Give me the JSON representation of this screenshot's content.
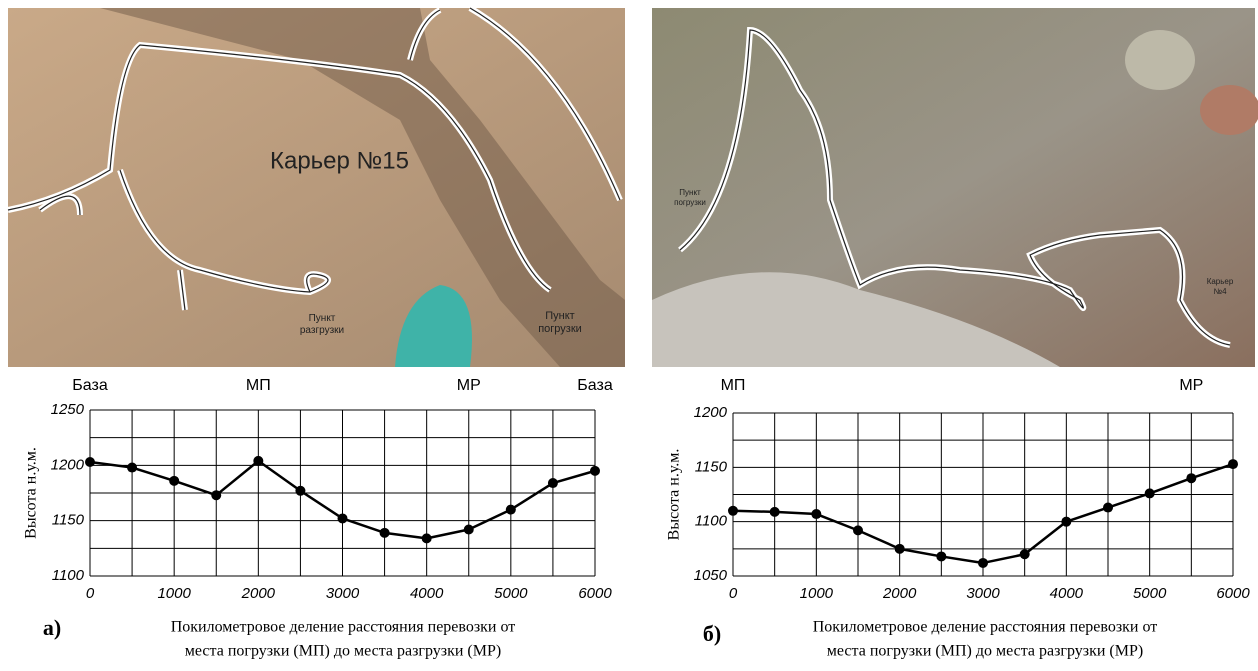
{
  "chart_data": [
    {
      "type": "line",
      "panel_label": "а)",
      "map_labels": [
        "Карьер №15",
        "Пункт разгрузки",
        "Пункт погрузки"
      ],
      "annotations": [
        {
          "text": "База",
          "x": 0
        },
        {
          "text": "МП",
          "x": 2000
        },
        {
          "text": "МР",
          "x": 4500
        },
        {
          "text": "База",
          "x": 6000
        }
      ],
      "ylabel": "Высота н.у.м.",
      "xlabel": [
        "Покилометровое деление расстояния перевозки от",
        "места погрузки (МП) до места разгрузки (МР)"
      ],
      "x": [
        0,
        500,
        1000,
        1500,
        2000,
        2500,
        3000,
        3500,
        4000,
        4500,
        5000,
        5500,
        6000
      ],
      "values": [
        1203,
        1198,
        1186,
        1173,
        1204,
        1177,
        1152,
        1139,
        1134,
        1142,
        1160,
        1184,
        1195
      ],
      "color": "#000000",
      "xlim": [
        0,
        6000
      ],
      "xticks": [
        0,
        1000,
        2000,
        3000,
        4000,
        5000,
        6000
      ],
      "ylim": [
        1100,
        1250
      ],
      "yticks": [
        1100,
        1150,
        1200,
        1250
      ],
      "grid": true
    },
    {
      "type": "line",
      "panel_label": "б)",
      "map_labels": [
        "Пункт погрузки",
        "Карьер №4"
      ],
      "annotations": [
        {
          "text": "МП",
          "x": 0
        },
        {
          "text": "МР",
          "x": 5500
        }
      ],
      "ylabel": "Высота н.у.м.",
      "xlabel": [
        "Покилометровое деление расстояния перевозки от",
        "места погрузки (МП) до места разгрузки (МР)"
      ],
      "x": [
        0,
        500,
        1000,
        1500,
        2000,
        2500,
        3000,
        3500,
        4000,
        4500,
        5000,
        5500,
        6000
      ],
      "values": [
        1110,
        1109,
        1107,
        1092,
        1075,
        1068,
        1062,
        1070,
        1100,
        1113,
        1126,
        1140,
        1153
      ],
      "color": "#000000",
      "xlim": [
        0,
        6000
      ],
      "xticks": [
        0,
        1000,
        2000,
        3000,
        4000,
        5000,
        6000
      ],
      "ylim": [
        1050,
        1200
      ],
      "yticks": [
        1050,
        1100,
        1150,
        1200
      ],
      "grid": true
    }
  ]
}
